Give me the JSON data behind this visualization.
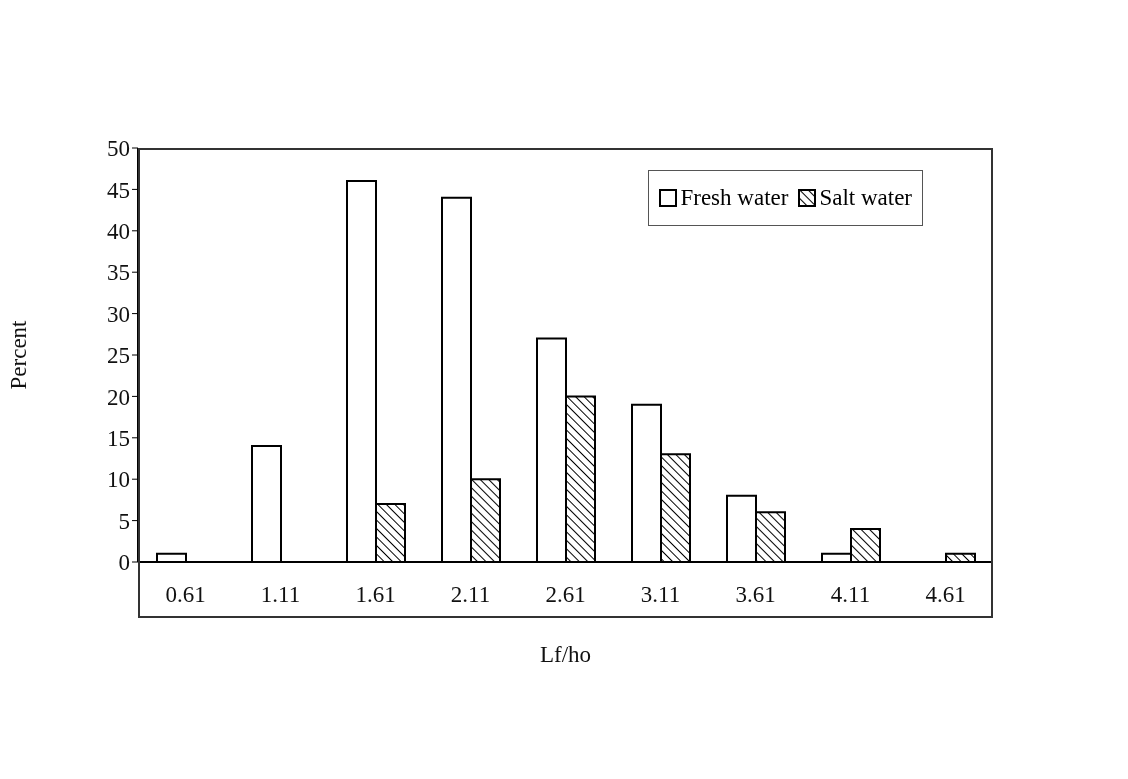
{
  "chart_data": {
    "type": "bar",
    "xlabel": "Lf/ho",
    "ylabel": "Percent",
    "categories": [
      "0.61",
      "1.11",
      "1.61",
      "2.11",
      "2.61",
      "3.11",
      "3.61",
      "4.11",
      "4.61"
    ],
    "series": [
      {
        "name": "Fresh water",
        "color": "#ffffff",
        "values": [
          1,
          14,
          46,
          44,
          27,
          19,
          8,
          1,
          0
        ]
      },
      {
        "name": "Salt water",
        "color": "#000000",
        "values": [
          0,
          0,
          7,
          10,
          20,
          13,
          6,
          4,
          1
        ]
      }
    ],
    "ylim": [
      0,
      50
    ],
    "yticks": [
      0,
      5,
      10,
      15,
      20,
      25,
      30,
      35,
      40,
      45,
      50
    ],
    "grid": false,
    "legend": "top right"
  }
}
